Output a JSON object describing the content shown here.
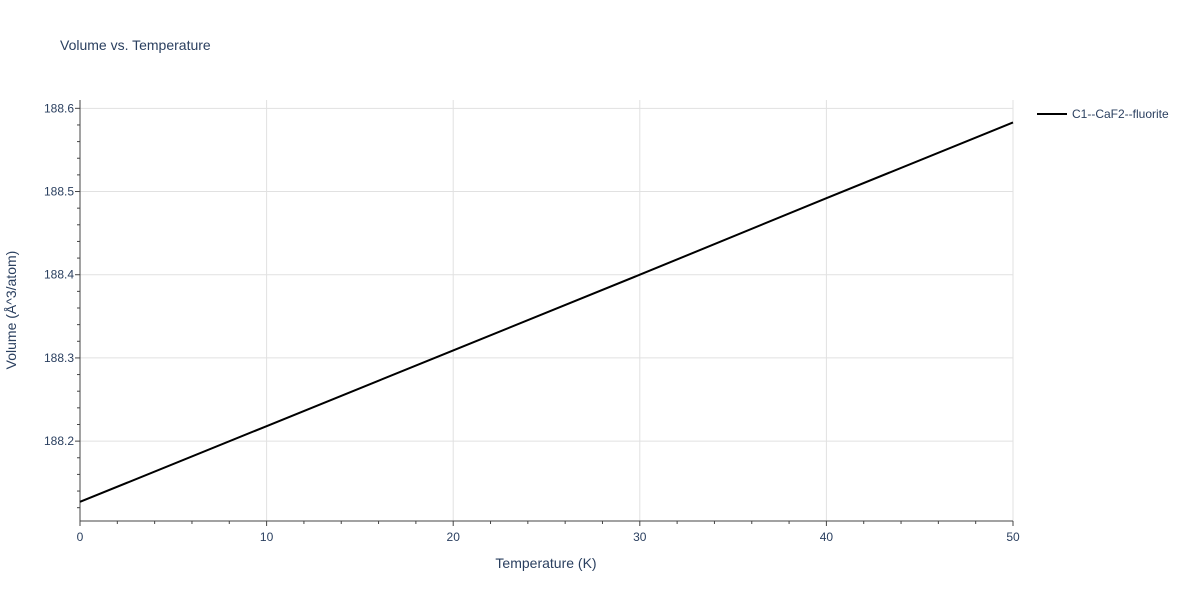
{
  "chart_data": {
    "type": "line",
    "title": "Volume vs. Temperature",
    "xlabel": "Temperature (K)",
    "ylabel": "Volume (Å^3/atom)",
    "xlim": [
      0,
      50
    ],
    "ylim": [
      188.104,
      188.61
    ],
    "xticks": [
      0,
      10,
      20,
      30,
      40,
      50
    ],
    "xtick_labels": [
      "0",
      "10",
      "20",
      "30",
      "40",
      "50"
    ],
    "yticks": [
      188.2,
      188.3,
      188.4,
      188.5,
      188.6
    ],
    "ytick_labels": [
      "188.2",
      "188.3",
      "188.4",
      "188.5",
      "188.6"
    ],
    "grid": true,
    "legend_position": "top-right",
    "series": [
      {
        "name": "C1--CaF2--fluorite",
        "color": "#000000",
        "x": [
          0,
          10,
          20,
          30,
          40,
          50
        ],
        "y": [
          188.127,
          188.218,
          188.309,
          188.4,
          188.492,
          188.583
        ]
      }
    ]
  }
}
